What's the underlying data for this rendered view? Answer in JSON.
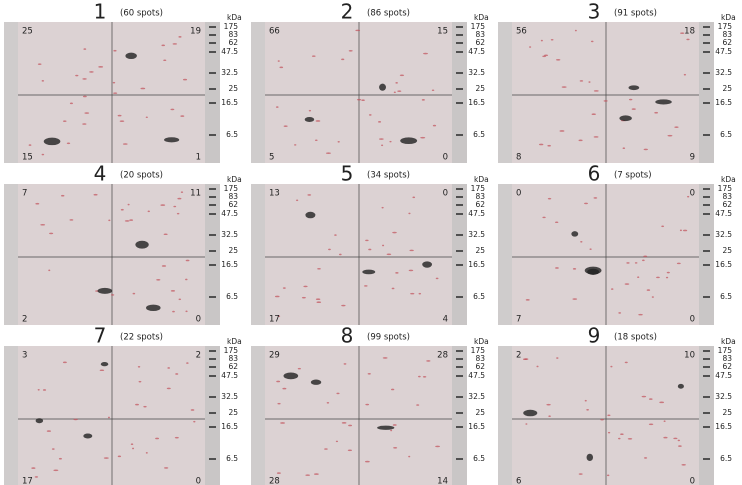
{
  "ladder": {
    "unit": "kDa",
    "markers": [
      "175",
      "83",
      "62",
      "47.5",
      "32.5",
      "25",
      "16.5",
      "6.5"
    ]
  },
  "panels": [
    {
      "number": "1",
      "spots": "(60 spots)",
      "counts": [
        25,
        19,
        15,
        1
      ]
    },
    {
      "number": "2",
      "spots": "(86 spots)",
      "counts": [
        66,
        15,
        5,
        0
      ]
    },
    {
      "number": "3",
      "spots": "(91 spots)",
      "counts": [
        56,
        18,
        8,
        9
      ]
    },
    {
      "number": "4",
      "spots": "(20 spots)",
      "counts": [
        7,
        11,
        2,
        0
      ]
    },
    {
      "number": "5",
      "spots": "(34 spots)",
      "counts": [
        13,
        0,
        17,
        4
      ]
    },
    {
      "number": "6",
      "spots": "(7 spots)",
      "counts": [
        0,
        0,
        7,
        0
      ]
    },
    {
      "number": "7",
      "spots": "(22 spots)",
      "counts": [
        3,
        2,
        17,
        0
      ]
    },
    {
      "number": "8",
      "spots": "(99 spots)",
      "counts": [
        29,
        28,
        28,
        14
      ]
    },
    {
      "number": "9",
      "spots": "(18 spots)",
      "counts": [
        2,
        10,
        6,
        0
      ]
    }
  ]
}
